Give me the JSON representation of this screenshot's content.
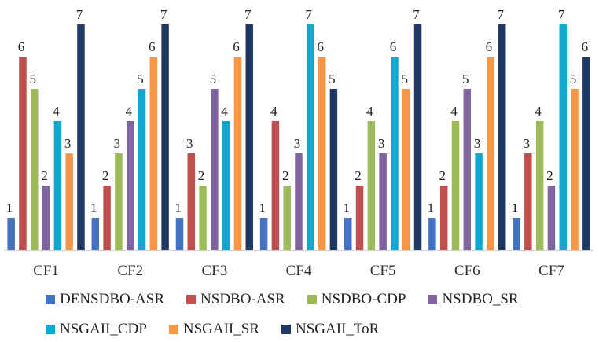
{
  "chart_data": {
    "type": "bar",
    "title": "",
    "xlabel": "",
    "ylabel": "",
    "ylim": [
      0,
      7
    ],
    "grid": false,
    "legend_position": "bottom",
    "categories": [
      "CF1",
      "CF2",
      "CF3",
      "CF4",
      "CF5",
      "CF6",
      "CF7"
    ],
    "series": [
      {
        "name": "DENSDBO-ASR",
        "color": "#4472c4",
        "values": [
          1,
          1,
          1,
          1,
          1,
          1,
          1
        ]
      },
      {
        "name": "NSDBO-ASR",
        "color": "#c0504d",
        "values": [
          6,
          2,
          3,
          4,
          2,
          2,
          3
        ]
      },
      {
        "name": "NSDBO-CDP",
        "color": "#9bbb59",
        "values": [
          5,
          3,
          2,
          2,
          4,
          4,
          4
        ]
      },
      {
        "name": "NSDBO_SR",
        "color": "#8064a2",
        "values": [
          2,
          4,
          5,
          3,
          3,
          5,
          2
        ]
      },
      {
        "name": "NSGAII_CDP",
        "color": "#12a6d0",
        "values": [
          4,
          5,
          4,
          7,
          6,
          3,
          7
        ]
      },
      {
        "name": "NSGAII_SR",
        "color": "#f79646",
        "values": [
          3,
          6,
          6,
          6,
          5,
          6,
          5
        ]
      },
      {
        "name": "NSGAII_ToR",
        "color": "#1f3864",
        "values": [
          7,
          7,
          7,
          5,
          7,
          7,
          6
        ]
      }
    ]
  }
}
